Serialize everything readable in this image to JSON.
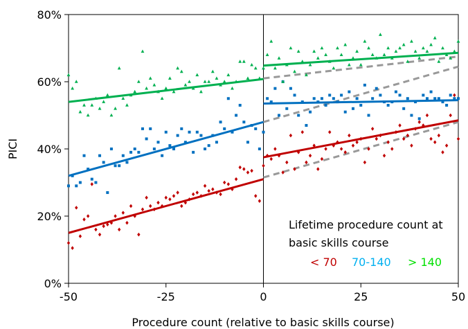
{
  "chart_data": {
    "type": "scatter",
    "xlabel": "Procedure count (relative to basic skills course)",
    "ylabel": "PICI",
    "xlim": [
      -50,
      50
    ],
    "ylim": [
      0,
      80
    ],
    "x_ticks": [
      -50,
      -25,
      0,
      25,
      50
    ],
    "x_tick_labels": [
      "-50",
      "-25",
      "0",
      "25",
      "50"
    ],
    "y_ticks": [
      0,
      20,
      40,
      60,
      80
    ],
    "y_tick_labels": [
      "0%",
      "20%",
      "40%",
      "60%",
      "80%"
    ],
    "legend": {
      "title_lines": [
        "Lifetime procedure count at",
        "basic skills course"
      ],
      "position": "bottom-right"
    },
    "vertical_reference_x": 0,
    "series": [
      {
        "name": "< 70",
        "color": "#c00000",
        "marker": "diamond",
        "fit_before": {
          "x": [
            -50,
            0
          ],
          "y": [
            15,
            31
          ]
        },
        "fit_after": {
          "x": [
            0,
            50
          ],
          "y": [
            37.5,
            48.5
          ]
        },
        "projection": {
          "x": [
            0,
            50
          ],
          "y": [
            31.5,
            48
          ]
        },
        "points_before": [
          [
            -50,
            12
          ],
          [
            -49,
            10.5
          ],
          [
            -48,
            22.5
          ],
          [
            -47,
            14
          ],
          [
            -46,
            19
          ],
          [
            -45,
            20
          ],
          [
            -44,
            29.5
          ],
          [
            -43,
            16
          ],
          [
            -42,
            14.5
          ],
          [
            -41,
            17
          ],
          [
            -40,
            17.5
          ],
          [
            -39,
            18
          ],
          [
            -38,
            20
          ],
          [
            -37,
            16
          ],
          [
            -36,
            21
          ],
          [
            -35,
            18
          ],
          [
            -34,
            23
          ],
          [
            -33,
            20
          ],
          [
            -32,
            14.5
          ],
          [
            -31,
            22
          ],
          [
            -30,
            25.5
          ],
          [
            -29,
            23
          ],
          [
            -28,
            22
          ],
          [
            -27,
            24
          ],
          [
            -26,
            23
          ],
          [
            -25,
            25.5
          ],
          [
            -24,
            25
          ],
          [
            -23,
            26
          ],
          [
            -22,
            27
          ],
          [
            -21,
            23
          ],
          [
            -20,
            24
          ],
          [
            -19,
            25
          ],
          [
            -18,
            26.5
          ],
          [
            -17,
            27
          ],
          [
            -16,
            26
          ],
          [
            -15,
            29
          ],
          [
            -14,
            27.5
          ],
          [
            -13,
            28
          ],
          [
            -12,
            27
          ],
          [
            -11,
            26.5
          ],
          [
            -10,
            30
          ],
          [
            -9,
            29.5
          ],
          [
            -8,
            28
          ],
          [
            -7,
            31
          ],
          [
            -6,
            34.5
          ],
          [
            -5,
            34
          ],
          [
            -4,
            33
          ],
          [
            -3,
            33.5
          ],
          [
            -2,
            26
          ],
          [
            -1,
            24.5
          ],
          [
            0,
            35
          ]
        ],
        "points_after": [
          [
            1,
            38
          ],
          [
            2,
            37
          ],
          [
            3,
            40
          ],
          [
            4,
            38
          ],
          [
            5,
            33
          ],
          [
            6,
            36
          ],
          [
            7,
            44
          ],
          [
            8,
            34
          ],
          [
            9,
            39
          ],
          [
            10,
            45
          ],
          [
            11,
            36
          ],
          [
            12,
            38
          ],
          [
            13,
            41
          ],
          [
            14,
            34
          ],
          [
            15,
            37
          ],
          [
            16,
            40
          ],
          [
            17,
            45
          ],
          [
            18,
            41
          ],
          [
            19,
            42
          ],
          [
            20,
            40
          ],
          [
            21,
            39
          ],
          [
            22,
            44
          ],
          [
            23,
            41
          ],
          [
            24,
            42
          ],
          [
            25,
            43
          ],
          [
            26,
            36
          ],
          [
            27,
            40
          ],
          [
            28,
            46
          ],
          [
            29,
            43
          ],
          [
            30,
            44
          ],
          [
            31,
            38
          ],
          [
            32,
            42
          ],
          [
            33,
            40
          ],
          [
            34,
            45
          ],
          [
            35,
            47
          ],
          [
            36,
            43
          ],
          [
            37,
            44
          ],
          [
            38,
            41
          ],
          [
            39,
            46
          ],
          [
            40,
            48
          ],
          [
            41,
            47
          ],
          [
            42,
            50
          ],
          [
            43,
            43
          ],
          [
            44,
            42
          ],
          [
            45,
            44
          ],
          [
            46,
            39
          ],
          [
            47,
            41
          ],
          [
            48,
            50
          ],
          [
            49,
            56
          ],
          [
            50,
            43
          ]
        ]
      },
      {
        "name": "70-140",
        "color": "#0070c0",
        "marker": "square",
        "fit_before": {
          "x": [
            -50,
            0
          ],
          "y": [
            32,
            48
          ]
        },
        "fit_after": {
          "x": [
            0,
            50
          ],
          "y": [
            53.5,
            54.5
          ]
        },
        "projection": {
          "x": [
            0,
            50
          ],
          "y": [
            48,
            64.5
          ]
        },
        "points_before": [
          [
            -50,
            29
          ],
          [
            -49,
            32
          ],
          [
            -48,
            29
          ],
          [
            -47,
            30
          ],
          [
            -46,
            38
          ],
          [
            -45,
            34
          ],
          [
            -44,
            31
          ],
          [
            -43,
            30
          ],
          [
            -42,
            38
          ],
          [
            -41,
            36
          ],
          [
            -40,
            27
          ],
          [
            -39,
            40
          ],
          [
            -38,
            35
          ],
          [
            -37,
            35
          ],
          [
            -36,
            38
          ],
          [
            -35,
            36
          ],
          [
            -34,
            39
          ],
          [
            -33,
            40
          ],
          [
            -32,
            39
          ],
          [
            -31,
            46
          ],
          [
            -30,
            43
          ],
          [
            -29,
            46
          ],
          [
            -28,
            40
          ],
          [
            -27,
            42
          ],
          [
            -26,
            38
          ],
          [
            -25,
            45
          ],
          [
            -24,
            41
          ],
          [
            -23,
            40
          ],
          [
            -22,
            44
          ],
          [
            -21,
            46
          ],
          [
            -20,
            42
          ],
          [
            -19,
            45
          ],
          [
            -18,
            39
          ],
          [
            -17,
            45
          ],
          [
            -16,
            44
          ],
          [
            -15,
            40
          ],
          [
            -14,
            41
          ],
          [
            -13,
            44
          ],
          [
            -12,
            42
          ],
          [
            -11,
            48
          ],
          [
            -10,
            46
          ],
          [
            -9,
            55
          ],
          [
            -8,
            45
          ],
          [
            -7,
            50
          ],
          [
            -6,
            53
          ],
          [
            -5,
            48
          ],
          [
            -4,
            42
          ],
          [
            -3,
            47
          ],
          [
            -2,
            46
          ],
          [
            -1,
            40
          ],
          [
            0,
            45
          ]
        ],
        "points_after": [
          [
            1,
            55
          ],
          [
            2,
            54
          ],
          [
            3,
            58
          ],
          [
            4,
            50
          ],
          [
            5,
            60
          ],
          [
            6,
            52
          ],
          [
            7,
            58
          ],
          [
            8,
            56
          ],
          [
            9,
            50
          ],
          [
            10,
            54
          ],
          [
            11,
            47
          ],
          [
            12,
            51
          ],
          [
            13,
            55
          ],
          [
            14,
            54
          ],
          [
            15,
            55
          ],
          [
            16,
            53
          ],
          [
            17,
            56
          ],
          [
            18,
            55
          ],
          [
            19,
            54
          ],
          [
            20,
            56
          ],
          [
            21,
            51
          ],
          [
            22,
            57
          ],
          [
            23,
            52
          ],
          [
            24,
            55
          ],
          [
            25,
            53
          ],
          [
            26,
            59
          ],
          [
            27,
            50
          ],
          [
            28,
            55
          ],
          [
            29,
            58
          ],
          [
            30,
            56
          ],
          [
            31,
            54
          ],
          [
            32,
            53
          ],
          [
            33,
            54
          ],
          [
            34,
            57
          ],
          [
            35,
            56
          ],
          [
            36,
            52
          ],
          [
            37,
            55
          ],
          [
            38,
            50
          ],
          [
            39,
            54
          ],
          [
            40,
            49
          ],
          [
            41,
            56
          ],
          [
            42,
            55
          ],
          [
            43,
            57
          ],
          [
            44,
            55
          ],
          [
            45,
            55
          ],
          [
            46,
            54
          ],
          [
            47,
            53
          ],
          [
            48,
            56
          ],
          [
            49,
            55
          ],
          [
            50,
            55
          ]
        ]
      },
      {
        "name": "> 140",
        "color": "#00b050",
        "marker": "triangle",
        "fit_before": {
          "x": [
            -50,
            0
          ],
          "y": [
            54,
            60.8
          ]
        },
        "fit_after": {
          "x": [
            0,
            50
          ],
          "y": [
            64.8,
            68.6
          ]
        },
        "projection": {
          "x": [
            0,
            50
          ],
          "y": [
            61,
            67.5
          ]
        },
        "points_before": [
          [
            -50,
            62
          ],
          [
            -49,
            58
          ],
          [
            -48,
            60
          ],
          [
            -47,
            51
          ],
          [
            -46,
            53
          ],
          [
            -45,
            50
          ],
          [
            -44,
            53
          ],
          [
            -43,
            55
          ],
          [
            -42,
            52
          ],
          [
            -41,
            54
          ],
          [
            -40,
            56
          ],
          [
            -39,
            50
          ],
          [
            -38,
            52
          ],
          [
            -37,
            64
          ],
          [
            -36,
            55
          ],
          [
            -35,
            53
          ],
          [
            -34,
            56
          ],
          [
            -33,
            57
          ],
          [
            -32,
            60
          ],
          [
            -31,
            69
          ],
          [
            -30,
            58
          ],
          [
            -29,
            61
          ],
          [
            -28,
            59
          ],
          [
            -27,
            57
          ],
          [
            -26,
            55
          ],
          [
            -25,
            58
          ],
          [
            -24,
            61
          ],
          [
            -23,
            57
          ],
          [
            -22,
            64
          ],
          [
            -21,
            63
          ],
          [
            -20,
            59
          ],
          [
            -19,
            60
          ],
          [
            -18,
            58
          ],
          [
            -17,
            62
          ],
          [
            -16,
            57
          ],
          [
            -15,
            60
          ],
          [
            -14,
            60
          ],
          [
            -13,
            63
          ],
          [
            -12,
            61
          ],
          [
            -11,
            59
          ],
          [
            -10,
            60
          ],
          [
            -9,
            62
          ],
          [
            -8,
            58
          ],
          [
            -7,
            60
          ],
          [
            -6,
            66
          ],
          [
            -5,
            66
          ],
          [
            -4,
            61
          ],
          [
            -3,
            65
          ],
          [
            -2,
            64
          ],
          [
            -1,
            61
          ],
          [
            0,
            64
          ]
        ],
        "points_after": [
          [
            1,
            68
          ],
          [
            2,
            72
          ],
          [
            3,
            64
          ],
          [
            4,
            67
          ],
          [
            5,
            60
          ],
          [
            6,
            65
          ],
          [
            7,
            70
          ],
          [
            8,
            63
          ],
          [
            9,
            69
          ],
          [
            10,
            66
          ],
          [
            11,
            62
          ],
          [
            12,
            65
          ],
          [
            13,
            69
          ],
          [
            14,
            67
          ],
          [
            15,
            70
          ],
          [
            16,
            68
          ],
          [
            17,
            66
          ],
          [
            18,
            64
          ],
          [
            19,
            70
          ],
          [
            20,
            68
          ],
          [
            21,
            71
          ],
          [
            22,
            65
          ],
          [
            23,
            67
          ],
          [
            24,
            69
          ],
          [
            25,
            65
          ],
          [
            26,
            72
          ],
          [
            27,
            70
          ],
          [
            28,
            68
          ],
          [
            29,
            67
          ],
          [
            30,
            74
          ],
          [
            31,
            68
          ],
          [
            32,
            70
          ],
          [
            33,
            67
          ],
          [
            34,
            69
          ],
          [
            35,
            70
          ],
          [
            36,
            71
          ],
          [
            37,
            66
          ],
          [
            38,
            72
          ],
          [
            39,
            69
          ],
          [
            40,
            67
          ],
          [
            41,
            70
          ],
          [
            42,
            69
          ],
          [
            43,
            71
          ],
          [
            44,
            73
          ],
          [
            45,
            66
          ],
          [
            46,
            70
          ],
          [
            47,
            68
          ],
          [
            48,
            67
          ],
          [
            49,
            69
          ],
          [
            50,
            72
          ]
        ]
      }
    ]
  }
}
